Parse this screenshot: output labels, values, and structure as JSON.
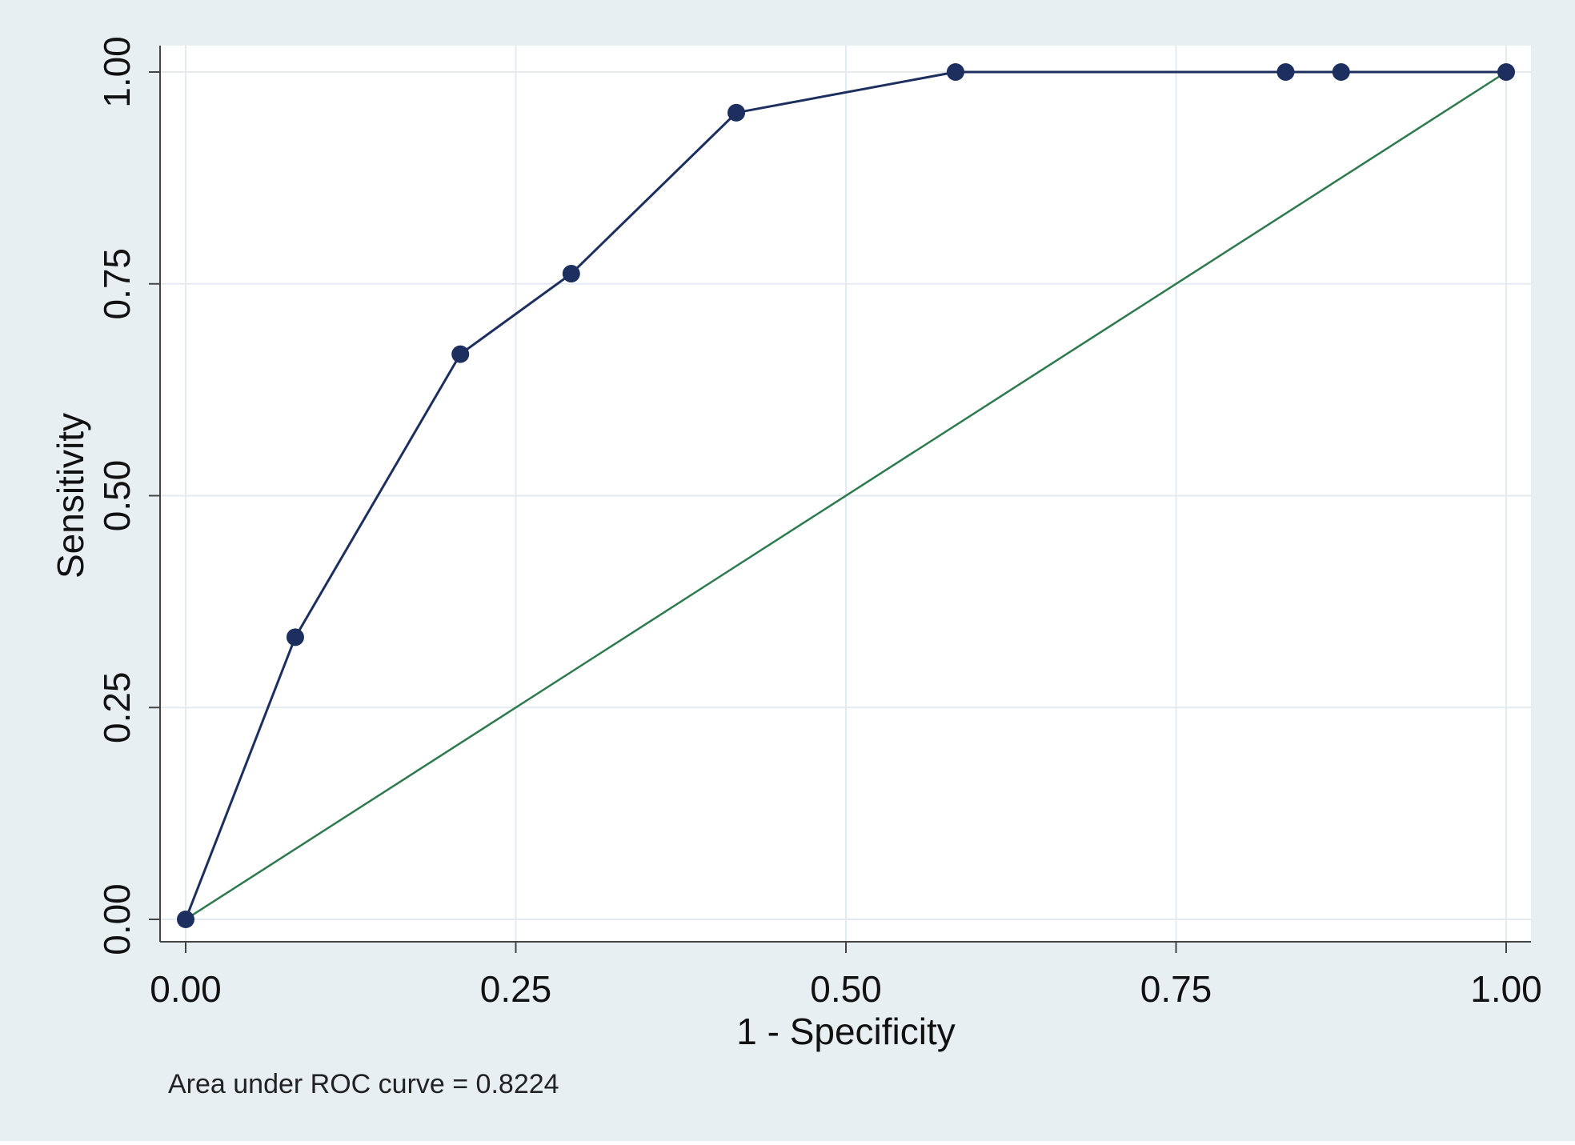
{
  "chart_data": {
    "type": "line",
    "title": "",
    "xlabel": "1 - Specificity",
    "ylabel": "Sensitivity",
    "xlim": [
      0,
      1
    ],
    "ylim": [
      0,
      1
    ],
    "x_ticks": [
      "0.00",
      "0.25",
      "0.50",
      "0.75",
      "1.00"
    ],
    "y_ticks": [
      "0.00",
      "0.25",
      "0.50",
      "0.75",
      "1.00"
    ],
    "grid": true,
    "series": [
      {
        "color": "#1c2f5e",
        "marker": "circle",
        "x": [
          0.0,
          0.083,
          0.208,
          0.292,
          0.417,
          0.583,
          0.833,
          0.875,
          1.0
        ],
        "y": [
          0.0,
          0.333,
          0.667,
          0.762,
          0.952,
          1.0,
          1.0,
          1.0,
          1.0
        ]
      },
      {
        "color": "#2e7a4f",
        "marker": "none",
        "x": [
          0.0,
          1.0
        ],
        "y": [
          0.0,
          1.0
        ]
      }
    ],
    "annotation": "Area under ROC curve = 0.8224",
    "colors": {
      "frame_background": "#e8eff3",
      "plot_background": "#ffffff",
      "grid": "#e3ebf0",
      "axis": "#444444"
    }
  }
}
